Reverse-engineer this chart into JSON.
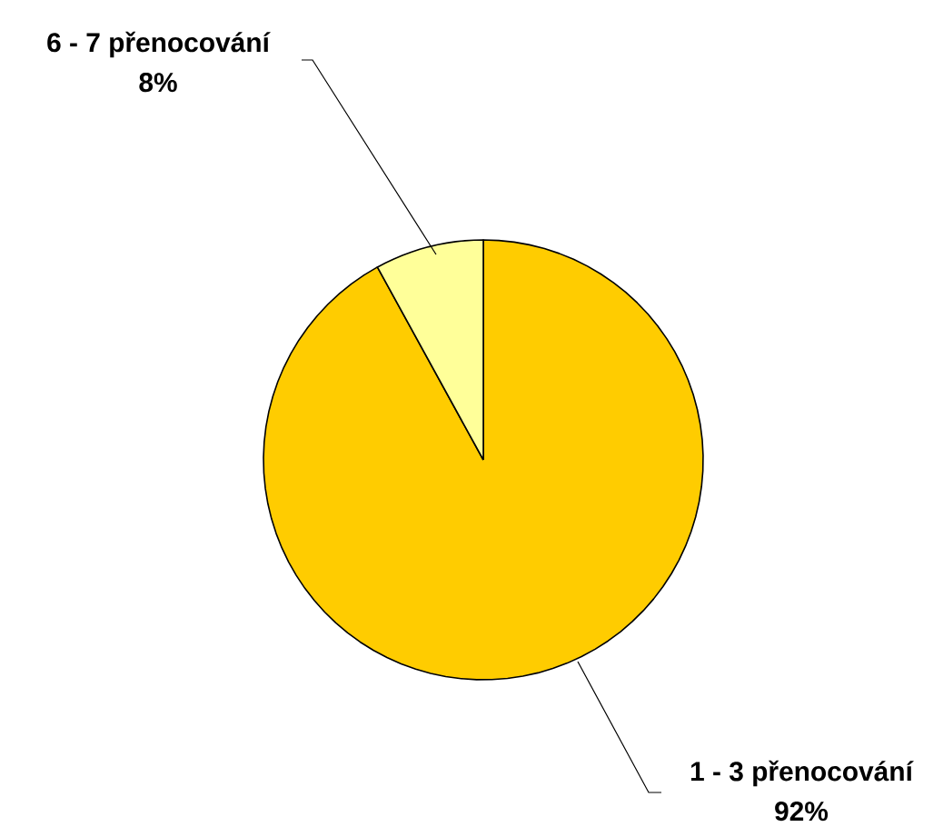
{
  "chart_data": {
    "type": "pie",
    "categories": [
      "1 - 3 přenocování",
      "6 - 7 přenocování"
    ],
    "values": [
      92,
      8
    ],
    "value_labels": [
      "92%",
      "8%"
    ],
    "colors": [
      "#ffcc00",
      "#ffff99"
    ]
  }
}
